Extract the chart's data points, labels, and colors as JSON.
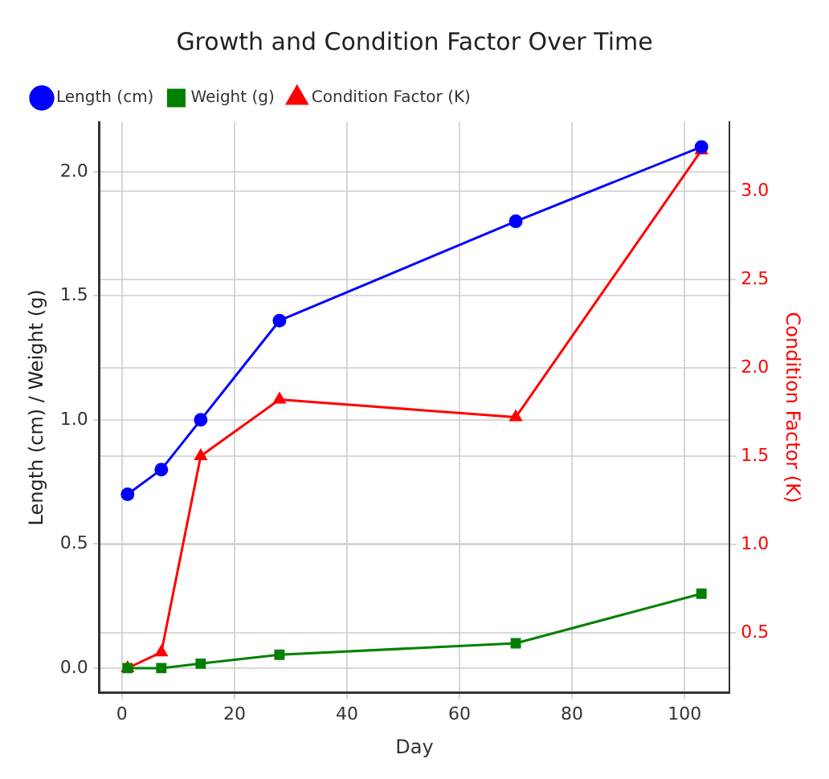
{
  "chart_data": {
    "type": "line",
    "title": "Growth and Condition Factor Over Time",
    "xlabel": "Day",
    "ylabel": "Length (cm) / Weight (g)",
    "y2label": "Condition Factor (K)",
    "x": [
      1,
      7,
      14,
      28,
      70,
      103
    ],
    "series": [
      {
        "name": "Length (cm)",
        "color": "#0000ff",
        "marker": "circle",
        "values": [
          0.7,
          0.8,
          1.0,
          1.4,
          1.8,
          2.1
        ]
      },
      {
        "name": "Weight (g)",
        "color": "#008000",
        "marker": "square",
        "values": [
          0.0,
          0.0,
          0.018,
          0.054,
          0.1,
          0.3
        ]
      },
      {
        "name": "Condition Factor (K)",
        "color": "#ff0000",
        "marker": "triangle",
        "axis": "y2",
        "values": [
          0.3,
          0.39,
          1.5,
          1.82,
          1.72,
          3.23
        ]
      }
    ],
    "xlim": [
      -4,
      108
    ],
    "xticks": [
      0,
      20,
      40,
      60,
      80,
      100
    ],
    "ylim": [
      -0.1,
      2.2
    ],
    "yticks": [
      {
        "value": 0,
        "label": "0.0"
      },
      0.5,
      {
        "value": 1,
        "label": "1.0"
      },
      1.5,
      {
        "value": 2,
        "label": "2.0"
      }
    ],
    "y2lim": [
      0.16,
      3.39
    ],
    "y2ticks": [
      0.5,
      {
        "value": 1,
        "label": "1.0"
      },
      1.5,
      {
        "value": 2,
        "label": "2.0"
      },
      2.5,
      {
        "value": 3,
        "label": "3.0"
      }
    ],
    "grid": true,
    "legend": "top left"
  }
}
